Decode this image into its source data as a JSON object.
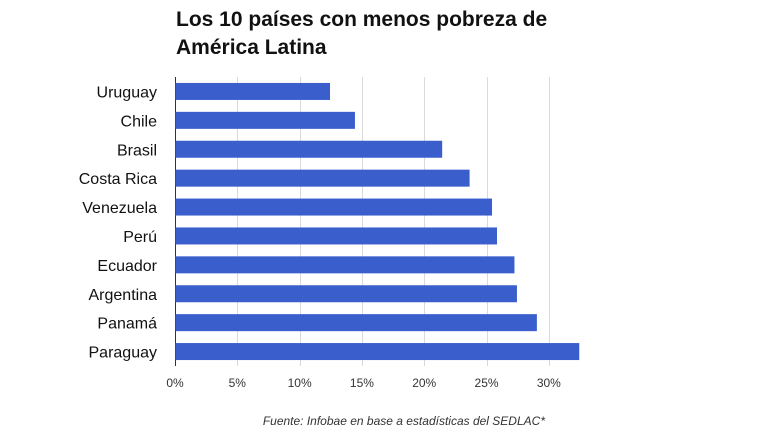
{
  "title_line1": "Los 10 países con menos pobreza de",
  "title_line2": "América Latina",
  "source": "Fuente: Infobae en base a estadísticas del SEDLAC*",
  "colors": {
    "bar": "#3a5fcd",
    "grid": "#d9d9d9",
    "axis": "#333333"
  },
  "chart_data": {
    "type": "bar",
    "orientation": "horizontal",
    "categories": [
      "Uruguay",
      "Chile",
      "Brasil",
      "Costa Rica",
      "Venezuela",
      "Perú",
      "Ecuador",
      "Argentina",
      "Panamá",
      "Paraguay"
    ],
    "values": [
      12.4,
      14.4,
      21.4,
      23.6,
      25.4,
      25.8,
      27.2,
      27.4,
      29.0,
      32.4
    ],
    "xlim": [
      0,
      32.5
    ],
    "xticks": [
      "0%",
      "5%",
      "10%",
      "15%",
      "20%",
      "25%",
      "30%"
    ],
    "xtick_values": [
      0,
      5,
      10,
      15,
      20,
      25,
      30
    ],
    "grid": true,
    "legend": "none"
  }
}
